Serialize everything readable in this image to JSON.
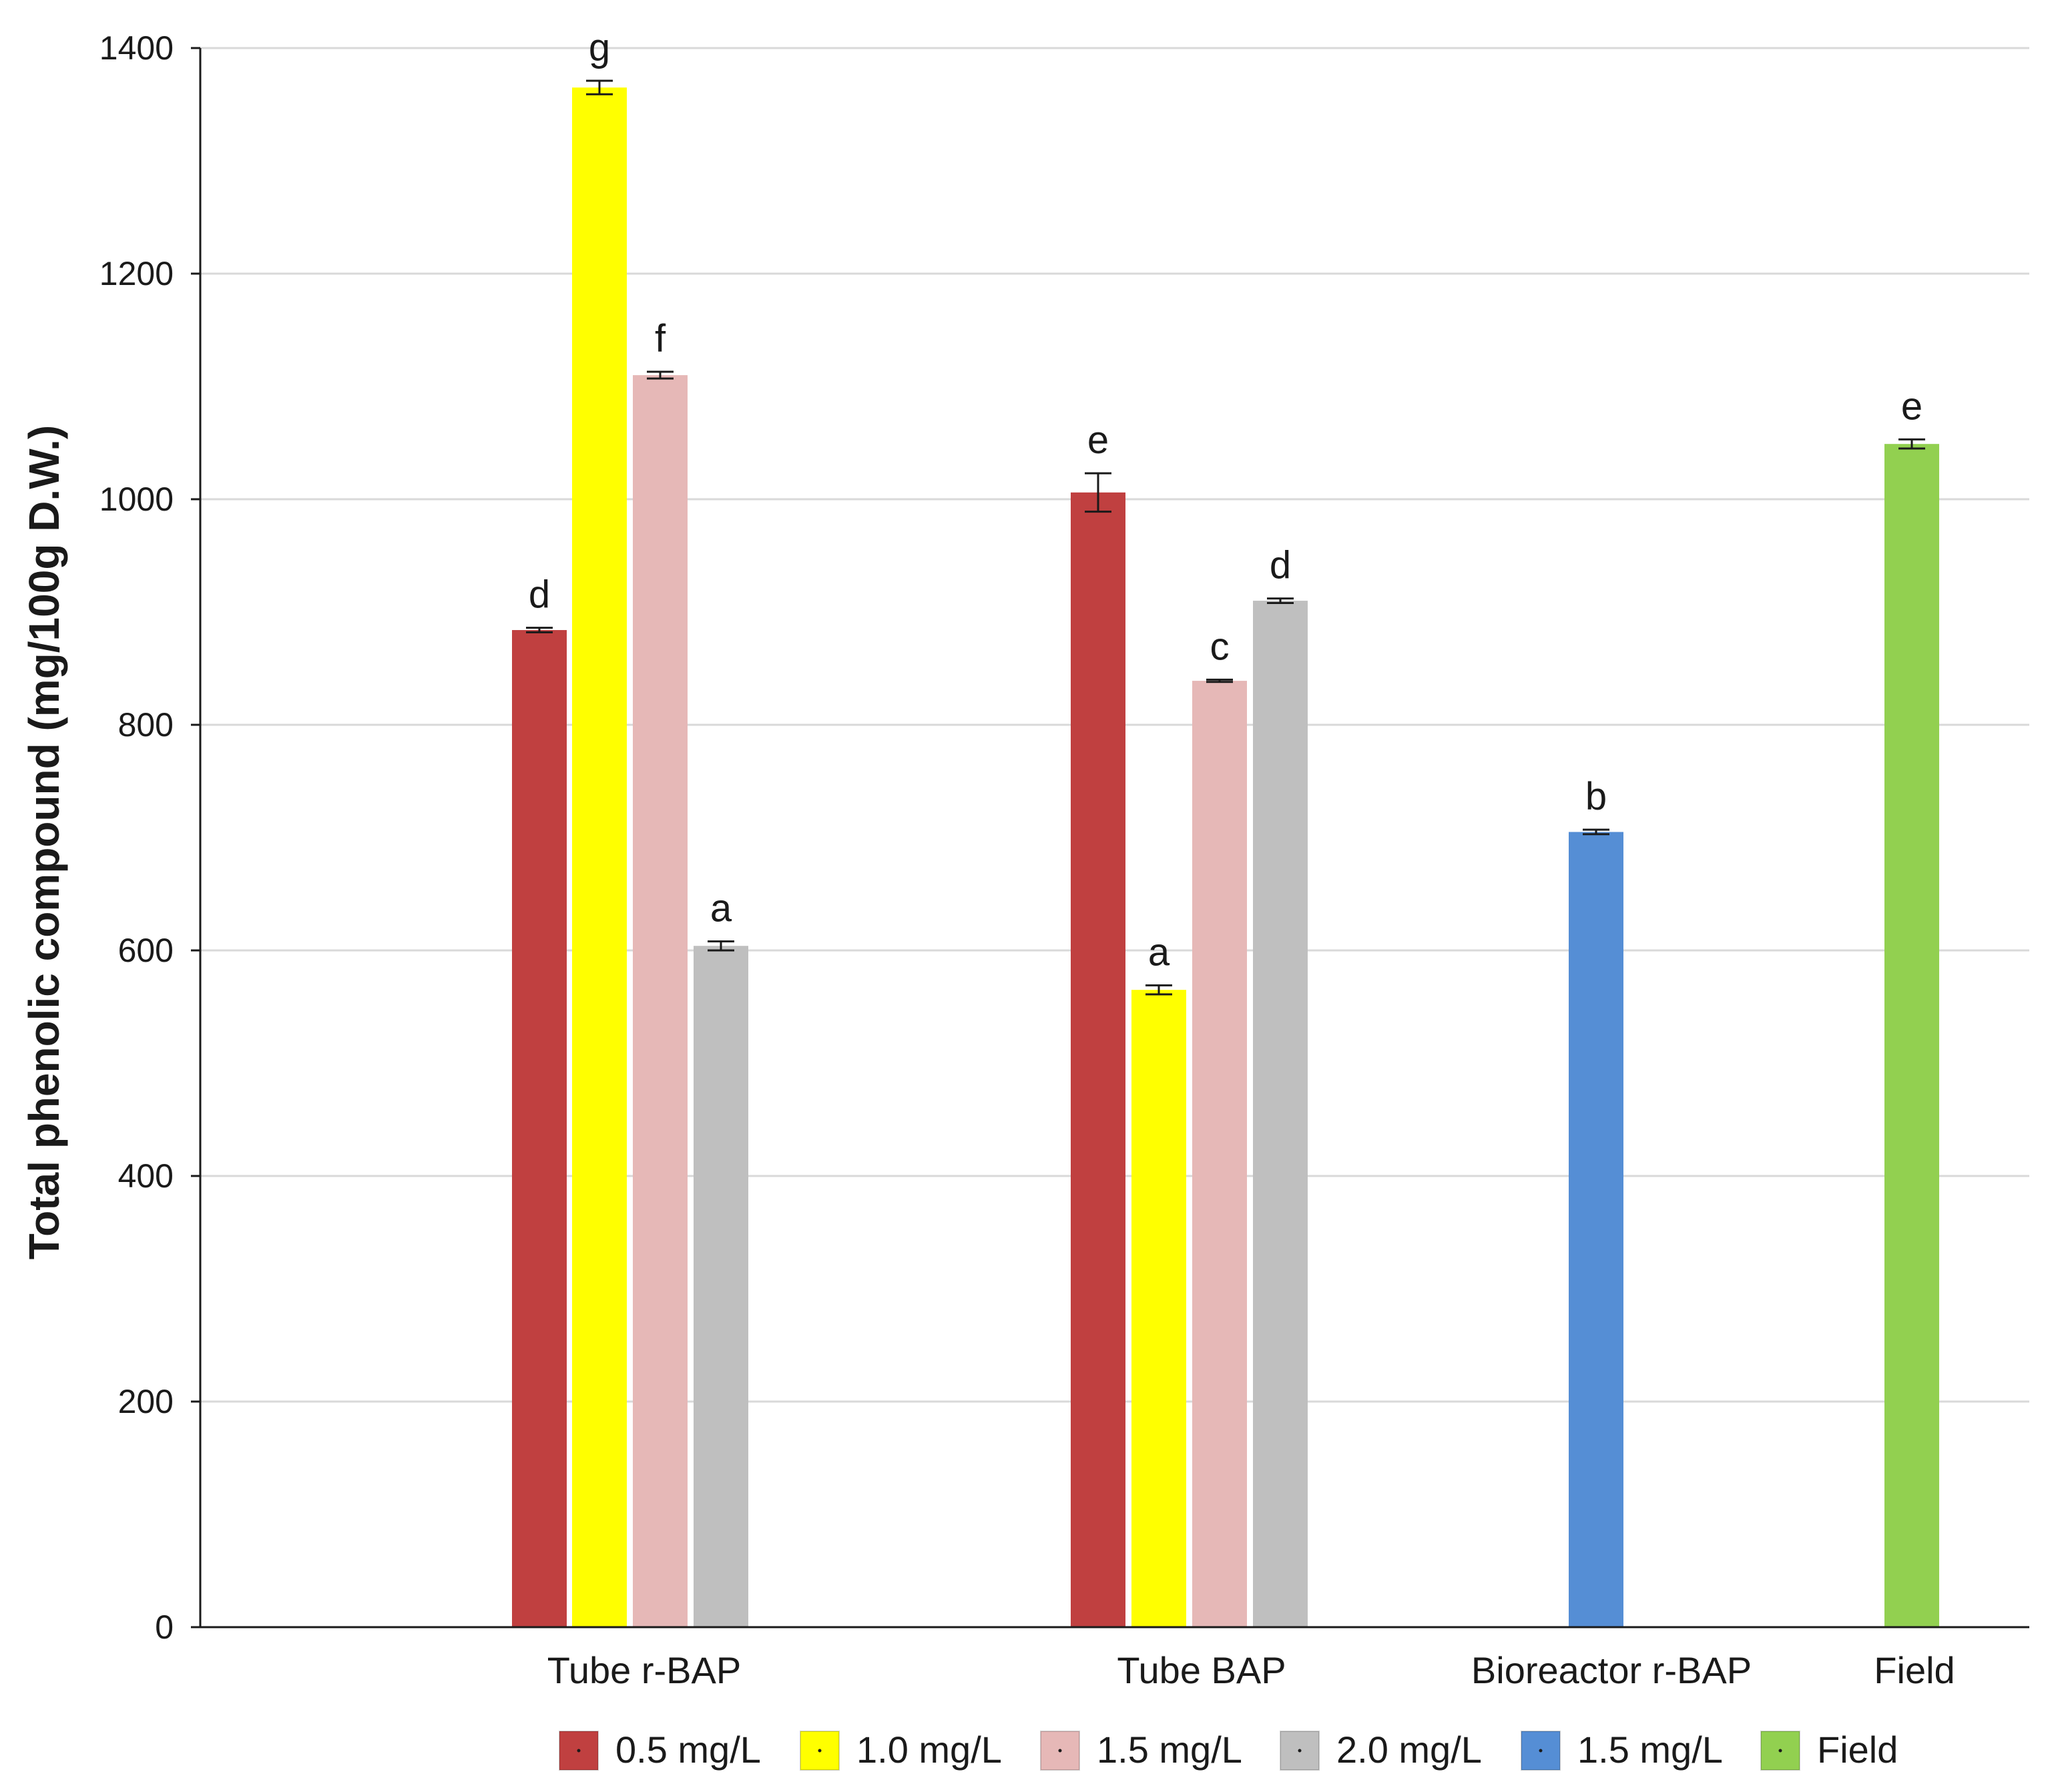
{
  "chart_data": {
    "type": "bar",
    "title": "",
    "xlabel": "",
    "ylabel": "Total phenolic compound (mg/100g D.W.)",
    "ylim": [
      0,
      1400
    ],
    "yticks": [
      0,
      200,
      400,
      600,
      800,
      1000,
      1200,
      1400
    ],
    "grid": true,
    "legend_position": "bottom",
    "categories": [
      "Tube r-BAP",
      "Tube BAP",
      "Bioreactor r-BAP",
      "Field"
    ],
    "bars": [
      {
        "category": "Tube r-BAP",
        "legend": "0.5 mg/L",
        "value": 884,
        "error": 2,
        "letter": "d",
        "color": "#c04040"
      },
      {
        "category": "Tube r-BAP",
        "legend": "1.0 mg/L",
        "value": 1365,
        "error": 6,
        "letter": "g",
        "color": "#ffff00"
      },
      {
        "category": "Tube r-BAP",
        "legend": "1.5 mg/L",
        "value": 1110,
        "error": 3,
        "letter": "f",
        "color": "#e6b8b7"
      },
      {
        "category": "Tube r-BAP",
        "legend": "2.0 mg/L",
        "value": 604,
        "error": 4,
        "letter": "a",
        "color": "#bfbfbf"
      },
      {
        "category": "Tube BAP",
        "legend": "0.5 mg/L",
        "value": 1006,
        "error": 17,
        "letter": "e",
        "color": "#c04040"
      },
      {
        "category": "Tube BAP",
        "legend": "1.0 mg/L",
        "value": 565,
        "error": 4,
        "letter": "a",
        "color": "#ffff00"
      },
      {
        "category": "Tube BAP",
        "legend": "1.5 mg/L",
        "value": 839,
        "error": 1,
        "letter": "c",
        "color": "#e6b8b7"
      },
      {
        "category": "Tube BAP",
        "legend": "2.0 mg/L",
        "value": 910,
        "error": 2,
        "letter": "d",
        "color": "#bfbfbf"
      },
      {
        "category": "Bioreactor r-BAP",
        "legend": "1.5 mg/L",
        "value": 705,
        "error": 2,
        "letter": "b",
        "color": "#558ed5"
      },
      {
        "category": "Field",
        "legend": "Field",
        "value": 1049,
        "error": 4,
        "letter": "e",
        "color": "#92d050"
      }
    ],
    "legend": [
      {
        "label": "0.5 mg/L",
        "color": "#c04040"
      },
      {
        "label": "1.0 mg/L",
        "color": "#ffff00"
      },
      {
        "label": "1.5 mg/L",
        "color": "#e6b8b7"
      },
      {
        "label": "2.0 mg/L",
        "color": "#bfbfbf"
      },
      {
        "label": "1.5 mg/L",
        "color": "#558ed5"
      },
      {
        "label": "Field",
        "color": "#92d050"
      }
    ]
  }
}
